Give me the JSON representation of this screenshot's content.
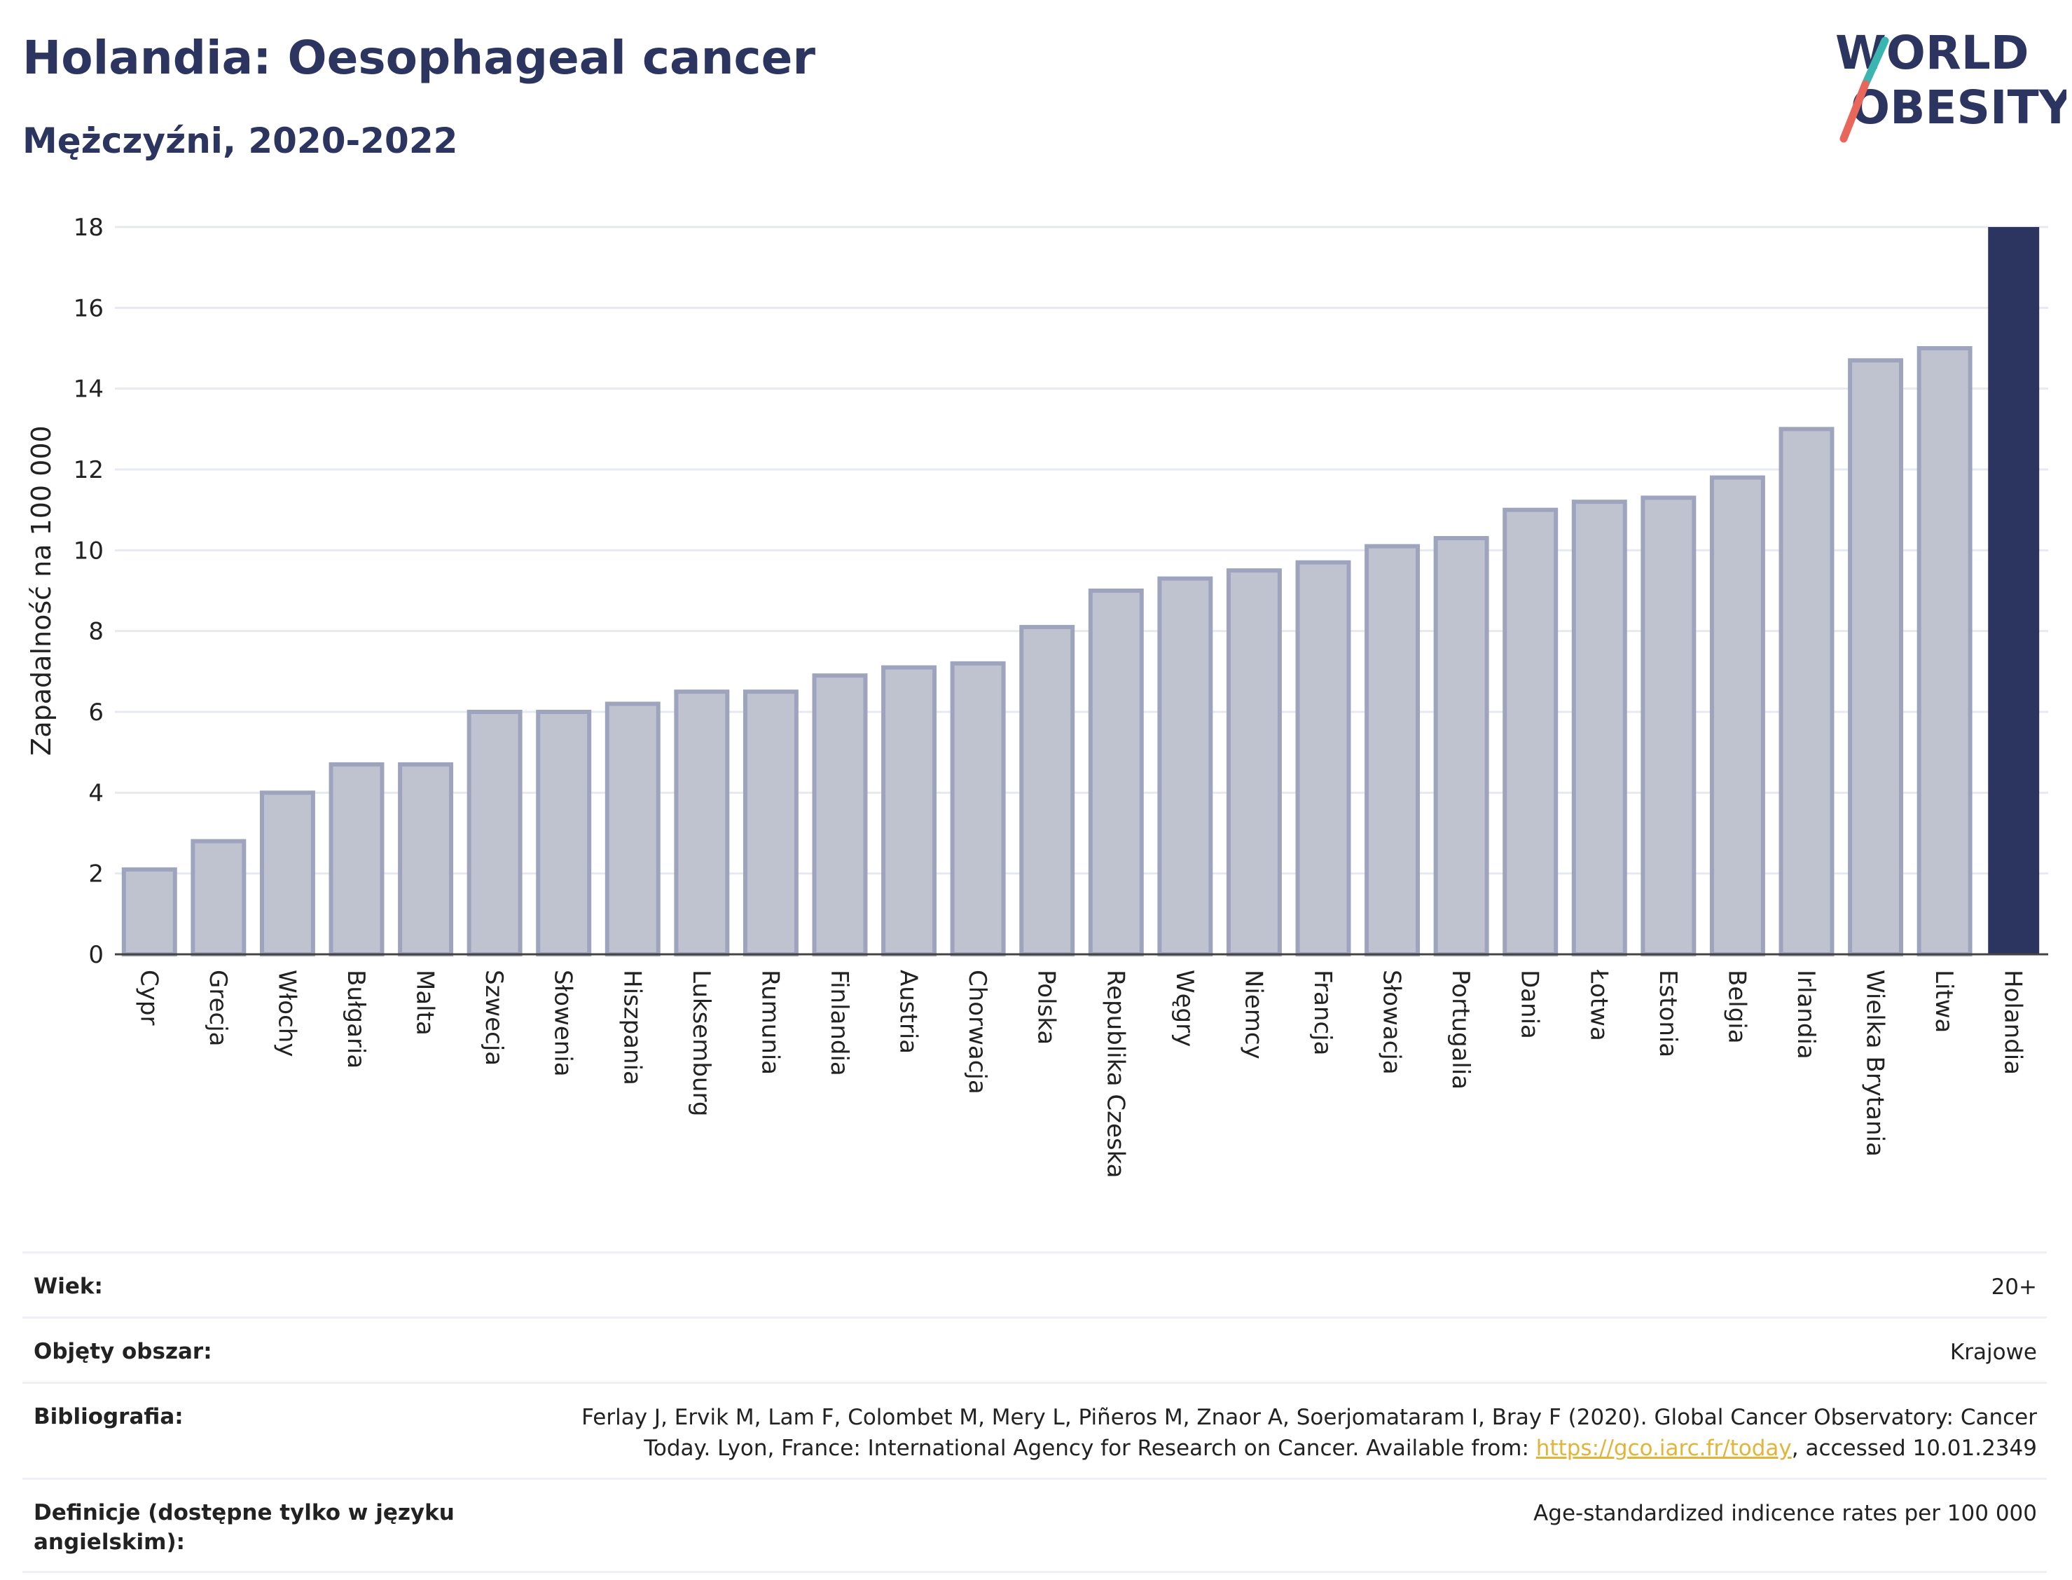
{
  "header": {
    "title": "Holandia: Oesophageal cancer",
    "subtitle": "Mężczyźni, 2020-2022"
  },
  "logo": {
    "line1": "WORLD",
    "line2": "OBESITY",
    "colors": {
      "text": "#2b3560",
      "slash_top": "#3bb5b0",
      "slash_bottom": "#e8675a"
    }
  },
  "chart_data": {
    "type": "bar",
    "ylabel": "Zapadalność na 100 000",
    "ylim": [
      0,
      18
    ],
    "yticks": [
      0,
      2,
      4,
      6,
      8,
      10,
      12,
      14,
      16,
      18
    ],
    "grid": true,
    "categories": [
      "Cypr",
      "Grecja",
      "Włochy",
      "Bułgaria",
      "Malta",
      "Szwecja",
      "Słowenia",
      "Hiszpania",
      "Luksemburg",
      "Rumunia",
      "Finlandia",
      "Austria",
      "Chorwacja",
      "Polska",
      "Republika Czeska",
      "Węgry",
      "Niemcy",
      "Francja",
      "Słowacja",
      "Portugalia",
      "Dania",
      "Łotwa",
      "Estonia",
      "Belgia",
      "Irlandia",
      "Wielka Brytania",
      "Litwa",
      "Holandia"
    ],
    "values": [
      2.1,
      2.8,
      4.0,
      4.7,
      4.7,
      6.0,
      6.0,
      6.2,
      6.5,
      6.5,
      6.9,
      7.1,
      7.2,
      8.1,
      9.0,
      9.3,
      9.5,
      9.7,
      10.1,
      10.3,
      11.0,
      11.2,
      11.3,
      11.8,
      13.0,
      14.7,
      15.0,
      18.0
    ],
    "highlight": "Holandia",
    "colors": {
      "bar": "#bfc3d0",
      "bar_edge": "#9ea4bd",
      "highlight": "#2b3560"
    }
  },
  "info": [
    {
      "label": "Wiek:",
      "value": "20+"
    },
    {
      "label": "Objęty obszar:",
      "value": "Krajowe"
    },
    {
      "label": "Bibliografia:",
      "value_lines": [
        "Ferlay J, Ervik M, Lam F, Colombet M, Mery L, Piñeros M, Znaor A, Soerjomataram I, Bray F (2020). Global Cancer Observatory: Cancer",
        "Today. Lyon, France: International Agency for Research on Cancer. Available from: "
      ],
      "link": "https://gco.iarc.fr/today",
      "suffix": ", accessed 10.01.2349"
    },
    {
      "label": "Definicje (dostępne tylko w języku angielskim):",
      "value": "Age-standardized indicence rates per 100 000"
    }
  ]
}
